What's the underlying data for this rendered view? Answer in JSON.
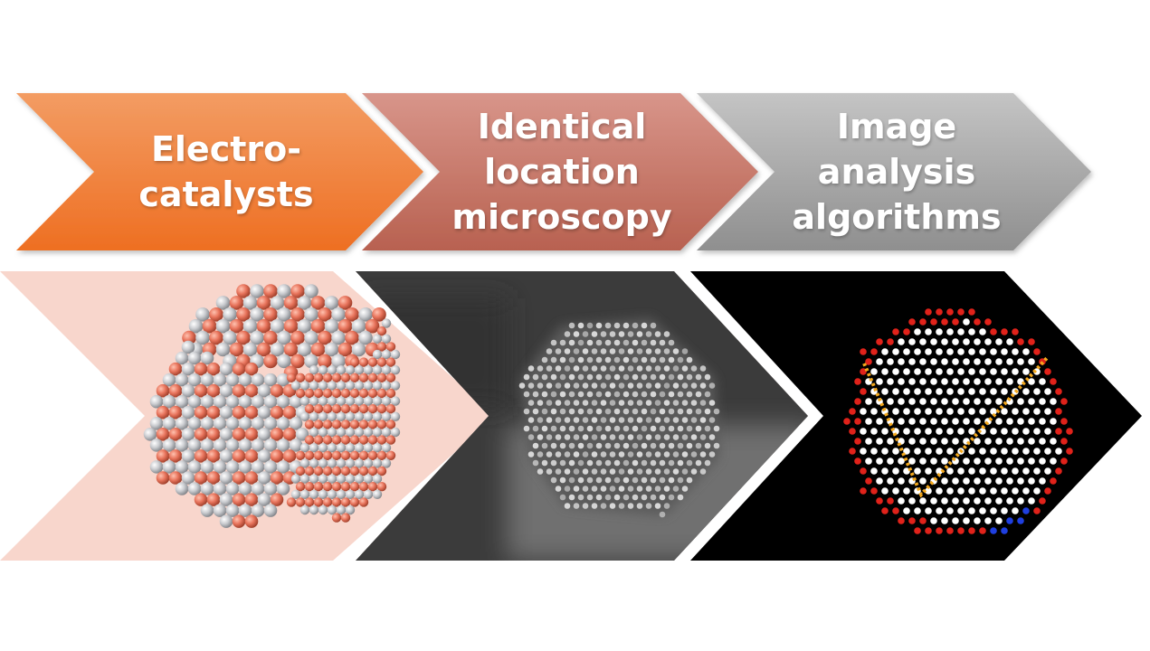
{
  "flow": {
    "steps": [
      {
        "line1": "Electro-",
        "line2": "catalysts",
        "line3": "",
        "color_top": "#f39c63",
        "color_bottom": "#ee6f22"
      },
      {
        "line1": "Identical",
        "line2": "location",
        "line3": "microscopy",
        "color_top": "#d8958a",
        "color_bottom": "#b86150"
      },
      {
        "line1": "Image",
        "line2": "analysis",
        "line3": "algorithms",
        "color_top": "#c4c4c4",
        "color_bottom": "#8f8f8f"
      }
    ]
  },
  "panels": {
    "catalyst_model": {
      "background": "#f8d6cc",
      "atom_colors": [
        "#e8745c",
        "#c9cbcf"
      ]
    },
    "microscopy_image": {
      "background": "#3b3b3b",
      "atom_color": "#e6e6e6"
    },
    "analysis_result": {
      "background": "#000000",
      "atom_colors": [
        "#ffffff",
        "#e0221a",
        "#1f3fe0",
        "#f4a81c"
      ]
    }
  }
}
